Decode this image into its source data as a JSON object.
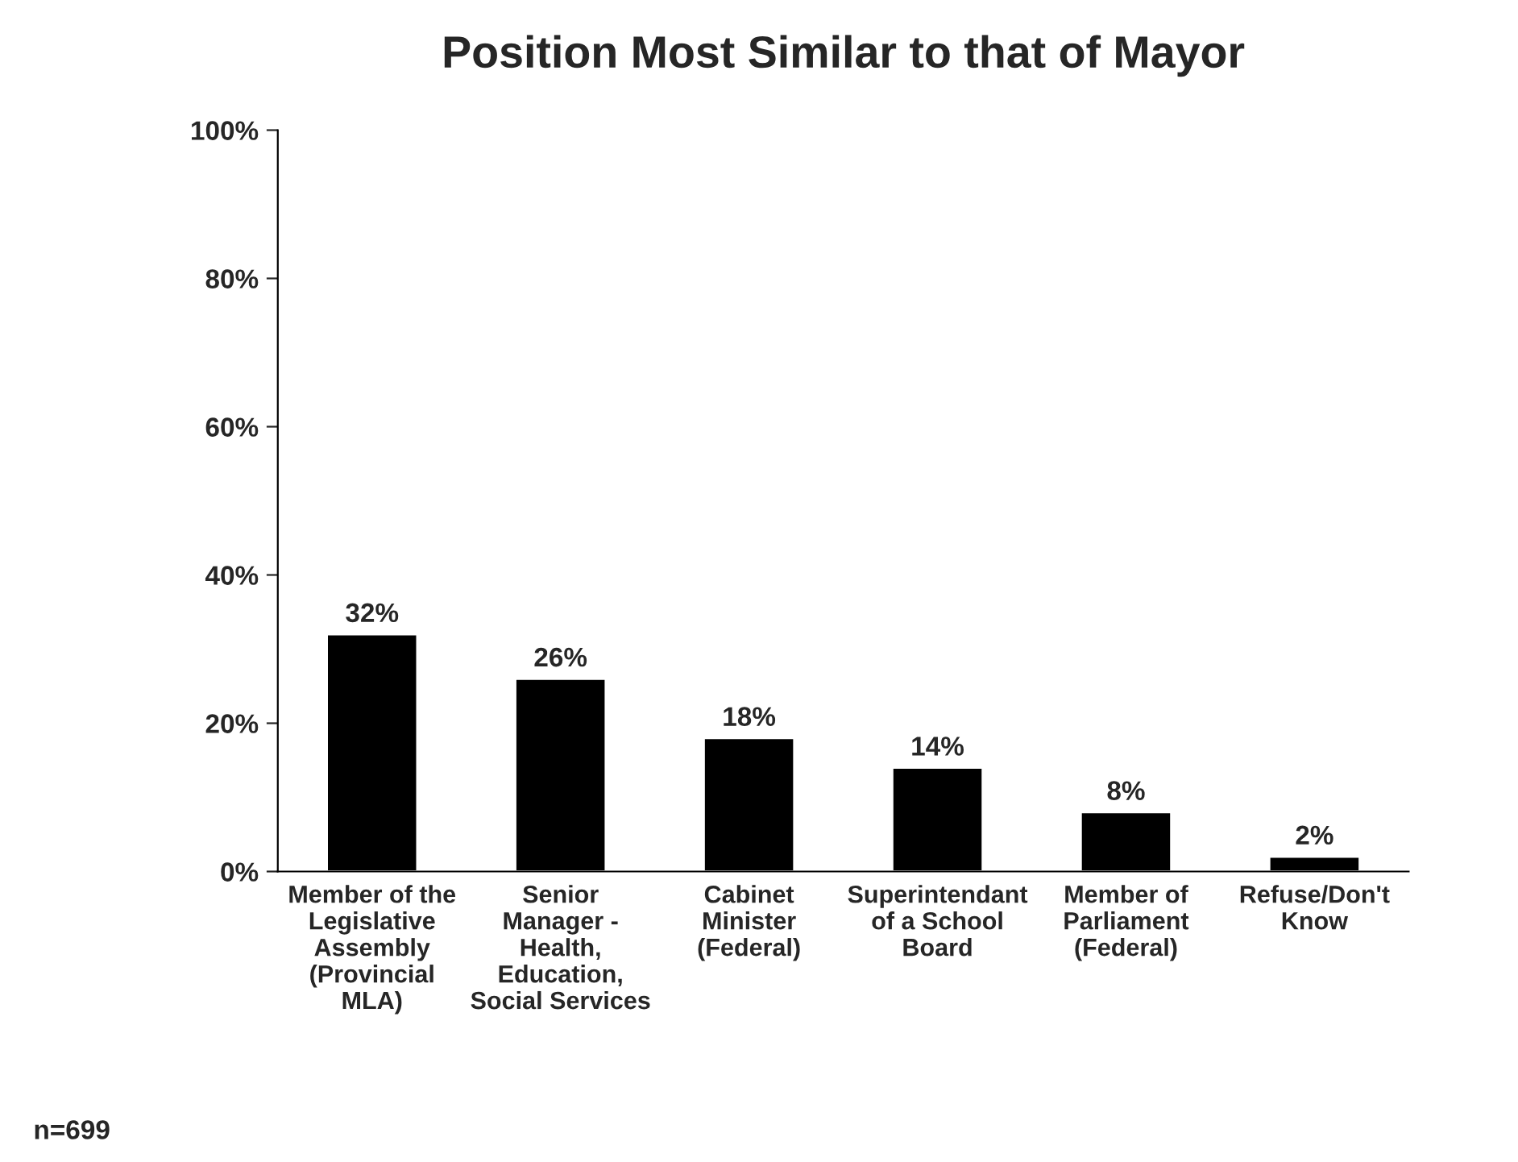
{
  "chart_data": {
    "type": "bar",
    "title": "Position Most Similar to that of Mayor",
    "categories": [
      "Member of the\nLegislative\nAssembly\n(Provincial\nMLA)",
      "Senior\nManager -\nHealth,\nEducation,\nSocial Services",
      "Cabinet\nMinister\n(Federal)",
      "Superintendant\nof a School\nBoard",
      "Member of\nParliament\n(Federal)",
      "Refuse/Don't\nKnow"
    ],
    "values": [
      32,
      26,
      18,
      14,
      8,
      2
    ],
    "value_labels": [
      "32%",
      "26%",
      "18%",
      "14%",
      "8%",
      "2%"
    ],
    "color": "#000000",
    "ylim": [
      0,
      100
    ],
    "yticks": [
      {
        "value": 0,
        "label": "0%"
      },
      {
        "value": 20,
        "label": "20%"
      },
      {
        "value": 40,
        "label": "40%"
      },
      {
        "value": 60,
        "label": "60%"
      },
      {
        "value": 80,
        "label": "80%"
      },
      {
        "value": 100,
        "label": "100%"
      }
    ],
    "grid": false,
    "legend": false,
    "annotations": [
      "n=699"
    ]
  }
}
